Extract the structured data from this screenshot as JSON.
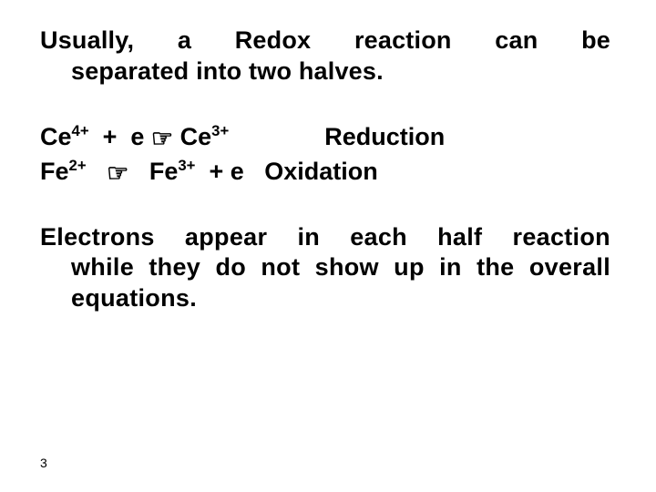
{
  "text_color": "#000000",
  "background_color": "#ffffff",
  "font_family": "Arial",
  "intro": {
    "line1_pre": "Usually,",
    "line1_mid1": "a",
    "line1_mid2": "Redox",
    "line1_mid3": "reaction",
    "line1_mid4": "can",
    "line1_end": "be",
    "line2": "separated into two halves."
  },
  "equations": {
    "row1": {
      "species1": "Ce",
      "sup1": "4+",
      "plus": "  +  e ",
      "arrow": "☞",
      "species2": " Ce",
      "sup2": "3+",
      "gap": "              ",
      "label": "Reduction"
    },
    "row2": {
      "species1": "Fe",
      "sup1": "2+",
      "gap1": "   ",
      "arrow": "☞",
      "gap2": "   ",
      "species2": "Fe",
      "sup2": "3+",
      "rest": "  + e   ",
      "label": "Oxidation"
    }
  },
  "conclusion": {
    "line_a_w1": "Electrons",
    "line_a_w2": "appear",
    "line_a_w3": "in",
    "line_a_w4": "each",
    "line_a_w5": "half",
    "line_a_w6": "reaction",
    "line_b": "while they do not show up in the overall",
    "line_c": "equations."
  },
  "page_number": "3"
}
